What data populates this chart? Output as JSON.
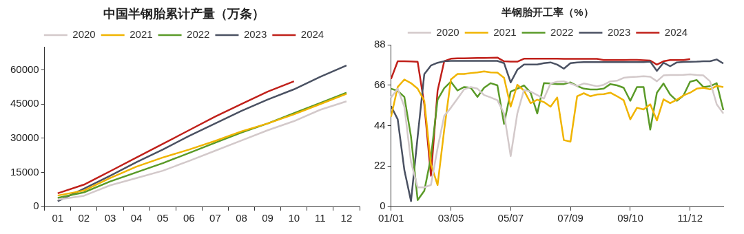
{
  "chart_data": [
    {
      "type": "line",
      "title": "中国半钢胎累计产量（万条）",
      "categories": [
        "01",
        "02",
        "03",
        "04",
        "05",
        "06",
        "07",
        "08",
        "09",
        "10",
        "11",
        "12"
      ],
      "ylim": [
        0,
        70000
      ],
      "yticks": [
        0,
        15000,
        30000,
        45000,
        60000
      ],
      "grid": false,
      "legend": "top",
      "marker": "none",
      "series": [
        {
          "name": "2020",
          "color": "#d3c9ca",
          "values": [
            3000,
            4700,
            9300,
            12500,
            15700,
            20000,
            24500,
            29000,
            33500,
            37500,
            42500,
            46200
          ]
        },
        {
          "name": "2021",
          "color": "#f0b400",
          "values": [
            4800,
            7000,
            12500,
            17500,
            21500,
            25000,
            28800,
            33000,
            36500,
            40500,
            45000,
            49500
          ]
        },
        {
          "name": "2022",
          "color": "#5a9a28",
          "values": [
            3800,
            6200,
            11000,
            15000,
            19000,
            23500,
            28000,
            32500,
            36500,
            41000,
            45500,
            50000
          ]
        },
        {
          "name": "2023",
          "color": "#4a5162",
          "values": [
            2300,
            7800,
            13500,
            19500,
            25000,
            31000,
            36500,
            42000,
            47000,
            51500,
            57000,
            62000
          ]
        },
        {
          "name": "2024",
          "color": "#c0201a",
          "values": [
            5800,
            9600,
            15500,
            21500,
            27500,
            33500,
            39500,
            45000,
            50500,
            55000,
            null,
            null
          ]
        }
      ]
    },
    {
      "type": "line",
      "title": "半钢胎开工率（%）",
      "categories": [
        "01/01",
        null,
        null,
        null,
        null,
        null,
        null,
        null,
        null,
        "03/05",
        null,
        null,
        null,
        null,
        null,
        null,
        null,
        null,
        "05/07",
        null,
        null,
        null,
        null,
        null,
        null,
        null,
        null,
        "07/09",
        null,
        null,
        null,
        null,
        null,
        null,
        null,
        null,
        "09/10",
        null,
        null,
        null,
        null,
        null,
        null,
        null,
        null,
        "11/12",
        null,
        null,
        null,
        null,
        null
      ],
      "ylim": [
        0,
        88
      ],
      "yticks": [
        0,
        22,
        44,
        66,
        88
      ],
      "grid": false,
      "legend": "top",
      "marker": "none",
      "series": [
        {
          "name": "2020",
          "color": "#d3c9ca",
          "values": [
            59.3,
            64.1,
            54.3,
            24.2,
            10.4,
            10.4,
            11.7,
            31.7,
            49.3,
            53.7,
            58.7,
            63.7,
            65,
            64.1,
            60.6,
            59.3,
            57.8,
            50.6,
            27.4,
            50.6,
            63.4,
            62.5,
            60.6,
            58.7,
            66.9,
            67.9,
            68.1,
            66.9,
            65.6,
            66.9,
            66.2,
            65.4,
            66.2,
            68.1,
            68.4,
            70,
            70.4,
            70.6,
            70.9,
            70.6,
            68.1,
            71.3,
            71.5,
            71.5,
            71.6,
            71.9,
            71.5,
            71.3,
            68.1,
            55.6,
            50.6
          ]
        },
        {
          "name": "2021",
          "color": "#f0b400",
          "values": [
            48.9,
            65,
            69.1,
            67.1,
            64.1,
            57.5,
            22.9,
            11.7,
            41.8,
            69.1,
            72.1,
            72.1,
            72.6,
            72.9,
            73.5,
            72.9,
            72.8,
            70,
            54.3,
            66.2,
            63.1,
            56.2,
            58.1,
            56.8,
            54.3,
            59.3,
            36.1,
            35.3,
            60,
            61.6,
            60,
            60.9,
            61.1,
            61.9,
            60,
            57.8,
            47.4,
            53.7,
            52.8,
            55.6,
            46.8,
            58.3,
            56.2,
            58.1,
            60.4,
            61.9,
            64.1,
            64.6,
            63.7,
            65.6,
            65
          ]
        },
        {
          "name": "2022",
          "color": "#5a9a28",
          "values": [
            64.1,
            62.9,
            59.6,
            38,
            3.5,
            8.5,
            26.7,
            58.1,
            64.4,
            67.9,
            63.1,
            65,
            64.6,
            59.6,
            64.6,
            67.1,
            65.9,
            44.9,
            62.5,
            64.1,
            65.9,
            61.9,
            50.6,
            67.1,
            66.9,
            66.6,
            66.6,
            67.5,
            65.6,
            64.1,
            63.7,
            63.7,
            64.1,
            66.6,
            65.9,
            64.6,
            57.5,
            65,
            65,
            41.8,
            61.9,
            66.9,
            60.9,
            57.5,
            60.4,
            67.9,
            68.8,
            65,
            65.4,
            67.1,
            52.4
          ]
        },
        {
          "name": "2023",
          "color": "#4a5162",
          "values": [
            54.6,
            47.4,
            19.8,
            2.9,
            38,
            72,
            76.7,
            78.2,
            79,
            79.2,
            79.2,
            79.2,
            79.2,
            79.2,
            79.2,
            79.2,
            79.2,
            78,
            67.5,
            74.4,
            77.2,
            77.2,
            77.2,
            78,
            78.4,
            77.2,
            75,
            78,
            78.4,
            78.5,
            78.5,
            78.5,
            78.5,
            78.5,
            78.5,
            78.5,
            78.5,
            78.5,
            78.5,
            78.8,
            73.8,
            78.2,
            76.3,
            78.4,
            78.6,
            78.7,
            78.8,
            79,
            79,
            80,
            77.8
          ]
        },
        {
          "name": "2024",
          "color": "#c0201a",
          "values": [
            69.4,
            79,
            79,
            78.9,
            78.7,
            55.6,
            16.7,
            63,
            79,
            80.4,
            80.6,
            80.6,
            80.7,
            80.8,
            80.8,
            80.9,
            81,
            79,
            78.8,
            78.8,
            80.4,
            80.4,
            80.4,
            80.4,
            80.4,
            80.4,
            80.3,
            80.3,
            80.3,
            80.3,
            80.3,
            80.3,
            79.7,
            79.7,
            79.7,
            79.7,
            79.8,
            79.8,
            79.6,
            79.4,
            77.2,
            79,
            79.7,
            79.7,
            79.7,
            80.2,
            null,
            null,
            null,
            null,
            null
          ]
        }
      ]
    }
  ]
}
